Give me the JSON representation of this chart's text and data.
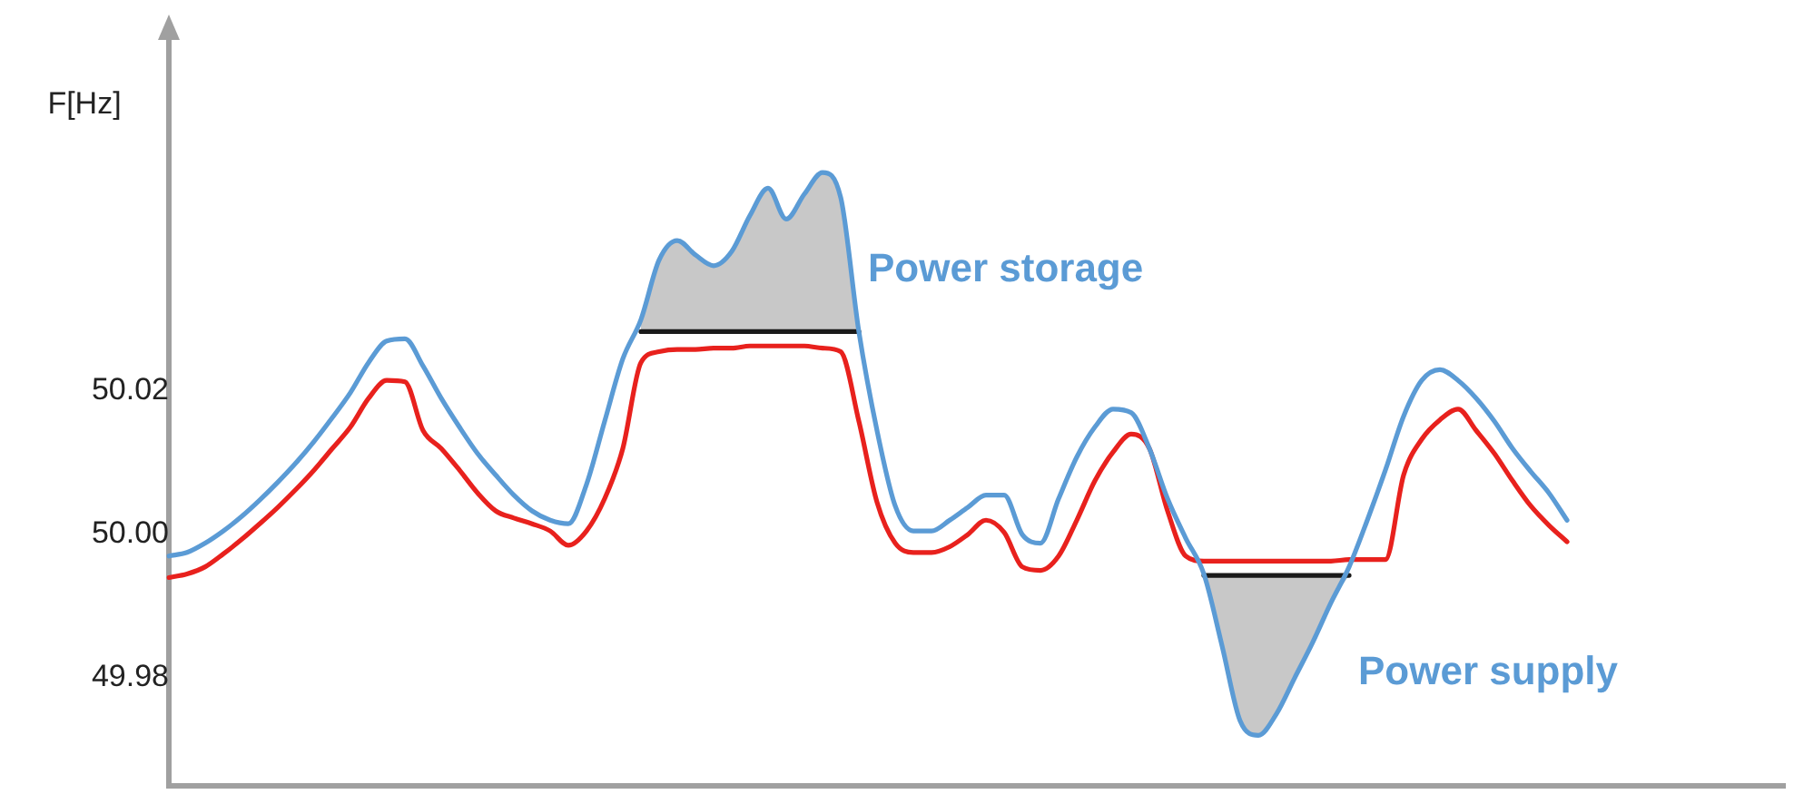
{
  "chart_data": {
    "type": "line",
    "ylabel": "F[Hz]",
    "categories": [
      null,
      null,
      null,
      null,
      null,
      null,
      null,
      null,
      null,
      null,
      null,
      null,
      null,
      null,
      null,
      null,
      null,
      null,
      null,
      null,
      null,
      null,
      null,
      null,
      null,
      null,
      null,
      null,
      null,
      null,
      null,
      null,
      null,
      null,
      null,
      null,
      null,
      null,
      null,
      null,
      null,
      null,
      null,
      null,
      null,
      null,
      null,
      null,
      null,
      null,
      null,
      null,
      null,
      null,
      null,
      null,
      null,
      null,
      null,
      null,
      null,
      null,
      null,
      null,
      null,
      null,
      null,
      null,
      null,
      null,
      null,
      null,
      null,
      null,
      null,
      null,
      null,
      null,
      null,
      null,
      null,
      null,
      null,
      null,
      null,
      null,
      null,
      null,
      null,
      null
    ],
    "series": [
      {
        "color": "#5b9bd5",
        "values": [
          49.997,
          49.9975,
          49.9988,
          50.0005,
          50.0025,
          50.0048,
          50.0073,
          50.01,
          50.013,
          50.0163,
          50.0198,
          50.024,
          50.027,
          50.0273,
          50.0235,
          50.019,
          50.015,
          50.0113,
          50.0083,
          50.0055,
          50.0033,
          50.002,
          50.0015,
          50.007,
          50.0158,
          50.0245,
          50.03,
          50.0383,
          50.041,
          50.039,
          50.0375,
          50.0395,
          50.0445,
          50.0483,
          50.044,
          50.0475,
          50.0505,
          50.047,
          50.0283,
          50.0145,
          50.004,
          50.0005,
          50.0005,
          50.002,
          50.0038,
          50.0055,
          50.0055,
          50.0,
          49.9988,
          50.005,
          50.0108,
          50.015,
          50.0175,
          50.017,
          50.012,
          50.005,
          49.9995,
          49.9945,
          49.9845,
          49.974,
          49.972,
          49.975,
          49.98,
          49.985,
          49.9905,
          49.9955,
          50.002,
          50.009,
          50.0165,
          50.0215,
          50.023,
          50.0215,
          50.019,
          50.0158,
          50.012,
          50.0088,
          50.0058,
          50.002,
          null,
          null,
          null,
          null,
          null,
          null,
          null,
          null,
          null,
          null,
          null,
          null
        ]
      },
      {
        "color": "#e8211d",
        "values": [
          49.994,
          49.9945,
          49.9955,
          49.9973,
          49.9993,
          50.0015,
          50.0038,
          50.0063,
          50.009,
          50.012,
          50.015,
          50.019,
          50.0215,
          50.0213,
          50.0145,
          50.012,
          50.009,
          50.0058,
          50.0033,
          50.0023,
          50.0015,
          50.0005,
          49.9985,
          50.0005,
          50.005,
          50.012,
          50.024,
          50.0255,
          50.0258,
          50.0258,
          50.026,
          50.026,
          50.0263,
          50.0263,
          50.0263,
          50.0263,
          50.026,
          50.0255,
          50.0158,
          50.0045,
          49.9988,
          49.9975,
          49.9975,
          49.9983,
          50.0,
          50.002,
          50.0003,
          49.9955,
          49.995,
          49.997,
          50.002,
          50.0075,
          50.0115,
          50.014,
          50.012,
          50.0033,
          49.997,
          49.9963,
          49.9963,
          49.9963,
          49.9963,
          49.9963,
          49.9963,
          49.9963,
          49.9963,
          49.9965,
          49.9965,
          49.9965,
          50.0083,
          50.0133,
          50.016,
          50.0175,
          50.0145,
          50.0113,
          50.0075,
          50.004,
          50.0013,
          49.999,
          null,
          null,
          null,
          null,
          null,
          null,
          null,
          null,
          null,
          null,
          null,
          null
        ]
      },
      {
        "color": "#1a1a1a",
        "values": [
          null,
          null,
          null,
          null,
          null,
          null,
          null,
          null,
          null,
          null,
          null,
          null,
          null,
          null,
          null,
          null,
          null,
          null,
          null,
          null,
          null,
          null,
          null,
          null,
          null,
          null,
          50.0283,
          50.0283,
          50.0283,
          50.0283,
          50.0283,
          50.0283,
          50.0283,
          50.0283,
          50.0283,
          50.0283,
          50.0283,
          50.0283,
          50.0283,
          null,
          null,
          null,
          null,
          null,
          null,
          null,
          null,
          null,
          null,
          null,
          null,
          null,
          null,
          null,
          null,
          null,
          null,
          null,
          null,
          null,
          null,
          null,
          null,
          null,
          null,
          null,
          null,
          null,
          null,
          null,
          null,
          null,
          null,
          null,
          null,
          null,
          null,
          null,
          null,
          null,
          null,
          null,
          null,
          null,
          null,
          null,
          null,
          null,
          null,
          null
        ],
        "lower": [
          null,
          null,
          null,
          null,
          null,
          null,
          null,
          null,
          null,
          null,
          null,
          null,
          null,
          null,
          null,
          null,
          null,
          null,
          null,
          null,
          null,
          null,
          null,
          null,
          null,
          null,
          50.0283,
          50.0283,
          50.0283,
          50.0283,
          50.0283,
          50.0283,
          50.0283,
          50.0283,
          50.0283,
          50.0283,
          50.0283,
          50.0283,
          50.0283,
          null,
          null,
          null,
          null,
          null,
          null,
          null,
          null,
          null,
          null,
          null,
          null,
          null,
          null,
          null,
          null,
          null,
          null,
          null,
          null,
          null,
          null,
          null,
          null,
          null,
          null,
          null,
          null,
          null,
          null,
          null,
          null,
          null,
          null,
          null,
          null,
          null,
          null,
          null,
          null,
          null,
          null,
          null,
          null,
          null,
          null,
          null,
          null,
          null,
          null,
          null
        ],
        "upper": [
          null,
          null,
          null,
          null,
          null,
          null,
          null,
          null,
          null,
          null,
          null,
          null,
          null,
          null,
          null,
          null,
          null,
          null,
          null,
          null,
          null,
          null,
          null,
          null,
          null,
          null,
          50.03,
          50.0383,
          50.041,
          50.039,
          50.0375,
          50.0395,
          50.0445,
          50.0483,
          50.044,
          50.0475,
          50.0505,
          50.047,
          50.0283,
          null,
          null,
          null,
          null,
          null,
          null,
          null,
          null,
          null,
          null,
          null,
          null,
          null,
          null,
          null,
          null,
          null,
          null,
          null,
          null,
          null,
          null,
          null,
          null,
          null,
          null,
          null,
          null,
          null,
          null,
          null,
          null,
          null,
          null,
          null,
          null,
          null,
          null,
          null,
          null,
          null,
          null,
          null,
          null,
          null,
          null,
          null,
          null,
          null,
          null,
          null
        ]
      },
      {
        "color": "#1a1a1a",
        "values": [
          null,
          null,
          null,
          null,
          null,
          null,
          null,
          null,
          null,
          null,
          null,
          null,
          null,
          null,
          null,
          null,
          null,
          null,
          null,
          null,
          null,
          null,
          null,
          null,
          null,
          null,
          null,
          null,
          null,
          null,
          null,
          null,
          null,
          null,
          null,
          null,
          null,
          null,
          null,
          null,
          null,
          null,
          null,
          null,
          null,
          null,
          null,
          null,
          null,
          null,
          null,
          null,
          null,
          null,
          null,
          null,
          null,
          49.9943,
          49.9943,
          49.9943,
          49.9943,
          49.9943,
          49.9943,
          49.9943,
          49.9943,
          49.9943,
          null,
          null,
          null,
          null,
          null,
          null,
          null,
          null,
          null,
          null,
          null,
          null,
          null,
          null,
          null,
          null,
          null,
          null,
          null,
          null,
          null,
          null,
          null,
          null
        ],
        "lower": [
          null,
          null,
          null,
          null,
          null,
          null,
          null,
          null,
          null,
          null,
          null,
          null,
          null,
          null,
          null,
          null,
          null,
          null,
          null,
          null,
          null,
          null,
          null,
          null,
          null,
          null,
          null,
          null,
          null,
          null,
          null,
          null,
          null,
          null,
          null,
          null,
          null,
          null,
          null,
          null,
          null,
          null,
          null,
          null,
          null,
          null,
          null,
          null,
          null,
          null,
          null,
          null,
          null,
          null,
          null,
          null,
          null,
          49.9943,
          49.9845,
          49.974,
          49.972,
          49.975,
          49.98,
          49.985,
          49.9905,
          49.9943,
          null,
          null,
          null,
          null,
          null,
          null,
          null,
          null,
          null,
          null,
          null,
          null,
          null,
          null,
          null,
          null,
          null,
          null,
          null,
          null,
          null,
          null,
          null,
          null
        ],
        "upper": [
          null,
          null,
          null,
          null,
          null,
          null,
          null,
          null,
          null,
          null,
          null,
          null,
          null,
          null,
          null,
          null,
          null,
          null,
          null,
          null,
          null,
          null,
          null,
          null,
          null,
          null,
          null,
          null,
          null,
          null,
          null,
          null,
          null,
          null,
          null,
          null,
          null,
          null,
          null,
          null,
          null,
          null,
          null,
          null,
          null,
          null,
          null,
          null,
          null,
          null,
          null,
          null,
          null,
          null,
          null,
          null,
          null,
          49.9943,
          49.9943,
          49.9943,
          49.9943,
          49.9943,
          49.9943,
          49.9943,
          49.9943,
          49.9943,
          null,
          null,
          null,
          null,
          null,
          null,
          null,
          null,
          null,
          null,
          null,
          null,
          null,
          null,
          null,
          null,
          null,
          null,
          null,
          null,
          null,
          null,
          null,
          null
        ]
      }
    ],
    "annotations": [
      "Power storage",
      "Power supply"
    ],
    "ylim": [
      49.965,
      50.07
    ],
    "yticks": [
      49.98,
      {
        "value": 50.0,
        "label": "50.00"
      },
      50.02
    ],
    "tick_labels": "y",
    "legend": false,
    "grid": false,
    "marker": "none",
    "line_style": "solid"
  }
}
